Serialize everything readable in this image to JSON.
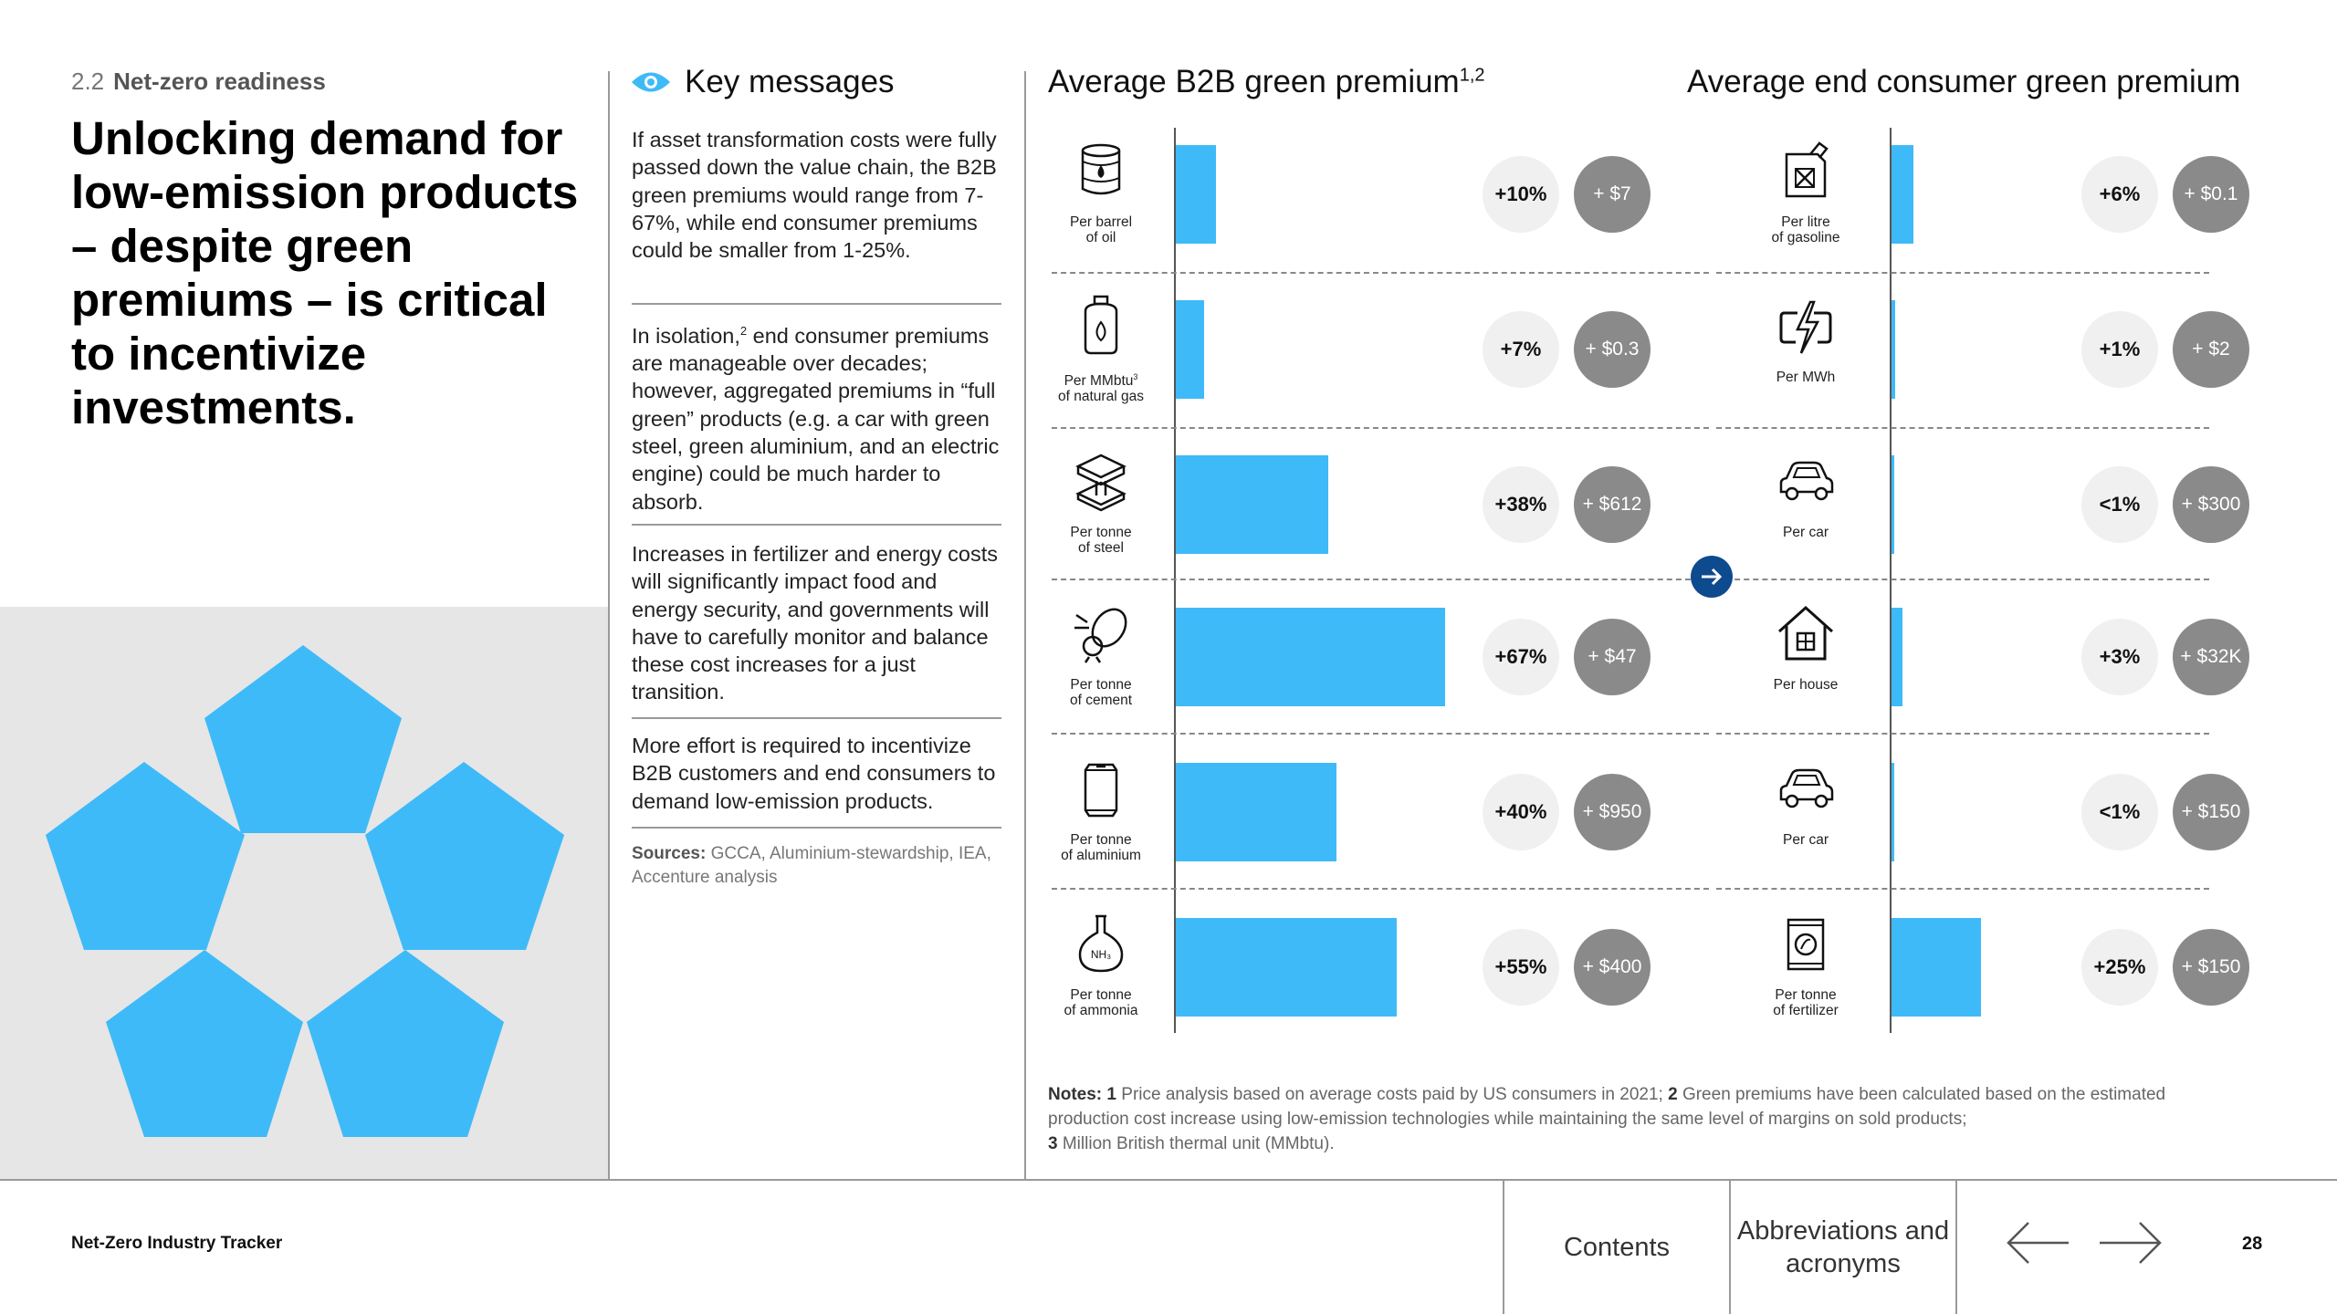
{
  "section": {
    "number": "2.2",
    "name": "Net-zero readiness"
  },
  "page_title": "Unlocking demand for low-emission products – despite green premiums – is critical to incentivize investments.",
  "key_messages": {
    "title": "Key messages",
    "items": [
      "If asset transformation costs were fully passed down the value chain, the B2B green premiums would range from 7-67%, while end consumer premiums could be smaller from 1-25%.",
      "Increases in fertilizer and energy costs will significantly impact food and energy security, and governments will have to carefully monitor and balance these cost increases for a just transition.",
      "More effort is required to incentivize B2B customers and end consumers to demand low-emission products."
    ],
    "item2": {
      "before": "In isolation,",
      "sup": "2",
      "after": " end consumer premiums are manageable over decades; however, aggregated premiums in “full green” products (e.g. a car with green steel, green aluminium, and an electric engine) could be much harder to absorb."
    },
    "sources_label": "Sources:",
    "sources_text": "GCCA, Aluminium-stewardship, IEA, Accenture analysis"
  },
  "chart_data": [
    {
      "type": "bar",
      "title": "Average B2B green premium",
      "title_sup": "1,2",
      "categories": [
        "Per barrel of oil",
        "Per MMbtu³ of natural gas",
        "Per tonne of steel",
        "Per tonne of cement",
        "Per tonne of aluminium",
        "Per tonne of ammonia"
      ],
      "category_lines": [
        [
          "Per barrel",
          "of oil"
        ],
        [
          "Per MMbtu",
          "of natural gas"
        ],
        [
          "Per tonne",
          "of steel"
        ],
        [
          "Per tonne",
          "of cement"
        ],
        [
          "Per tonne",
          "of aluminium"
        ],
        [
          "Per tonne",
          "of ammonia"
        ]
      ],
      "category_sup": [
        "",
        "3",
        "",
        "",
        "",
        ""
      ],
      "values": [
        10,
        7,
        38,
        67,
        40,
        55
      ],
      "pct_labels": [
        "+10%",
        "+7%",
        "+38%",
        "+67%",
        "+40%",
        "+55%"
      ],
      "abs_labels": [
        "+ $7",
        "+ $0.3",
        "+ $612",
        "+ $47",
        "+ $950",
        "+ $400"
      ],
      "icons": [
        "oil-barrel-icon",
        "gas-tank-icon",
        "steel-beam-icon",
        "cement-mixer-icon",
        "aluminium-can-icon",
        "ammonia-flask-icon"
      ],
      "ylim": [
        0,
        67
      ]
    },
    {
      "type": "bar",
      "title": "Average end consumer green premium",
      "categories": [
        "Per litre of gasoline",
        "Per MWh",
        "Per car",
        "Per house",
        "Per car",
        "Per tonne of fertilizer"
      ],
      "category_lines": [
        [
          "Per litre",
          "of gasoline"
        ],
        [
          "Per MWh"
        ],
        [
          "Per car"
        ],
        [
          "Per house"
        ],
        [
          "Per car"
        ],
        [
          "Per tonne",
          "of fertilizer"
        ]
      ],
      "category_sup": [
        "",
        "",
        "",
        "",
        "",
        ""
      ],
      "values": [
        6,
        1,
        0.5,
        3,
        0.5,
        25
      ],
      "pct_labels": [
        "+6%",
        "+1%",
        "<1%",
        "+3%",
        "<1%",
        "+25%"
      ],
      "abs_labels": [
        "+ $0.1",
        "+ $2",
        "+ $300",
        "+ $32K",
        "+ $150",
        "+ $150"
      ],
      "icons": [
        "jerrycan-icon",
        "lightning-bolt-icon",
        "car-icon",
        "house-icon",
        "car-icon",
        "fertilizer-bag-icon"
      ],
      "ylim": [
        0,
        25
      ]
    }
  ],
  "notes": {
    "label": "Notes:",
    "n1": "1",
    "t1": "Price analysis based on average costs paid by US consumers in 2021;",
    "n2": "2",
    "t2": "Green premiums have been calculated based on the estimated production cost increase using low-emission technologies while maintaining the same level of margins on sold products;",
    "n3": "3",
    "t3": "Million British thermal unit (MMbtu)."
  },
  "footer": {
    "title": "Net-Zero Industry Tracker",
    "contents": "Contents",
    "abbreviations": "Abbreviations and acronyms",
    "page": "28"
  },
  "colors": {
    "bar": "#3fbaf8",
    "accent": "#0d4a8e",
    "pentagon": "#3fbaf8"
  }
}
